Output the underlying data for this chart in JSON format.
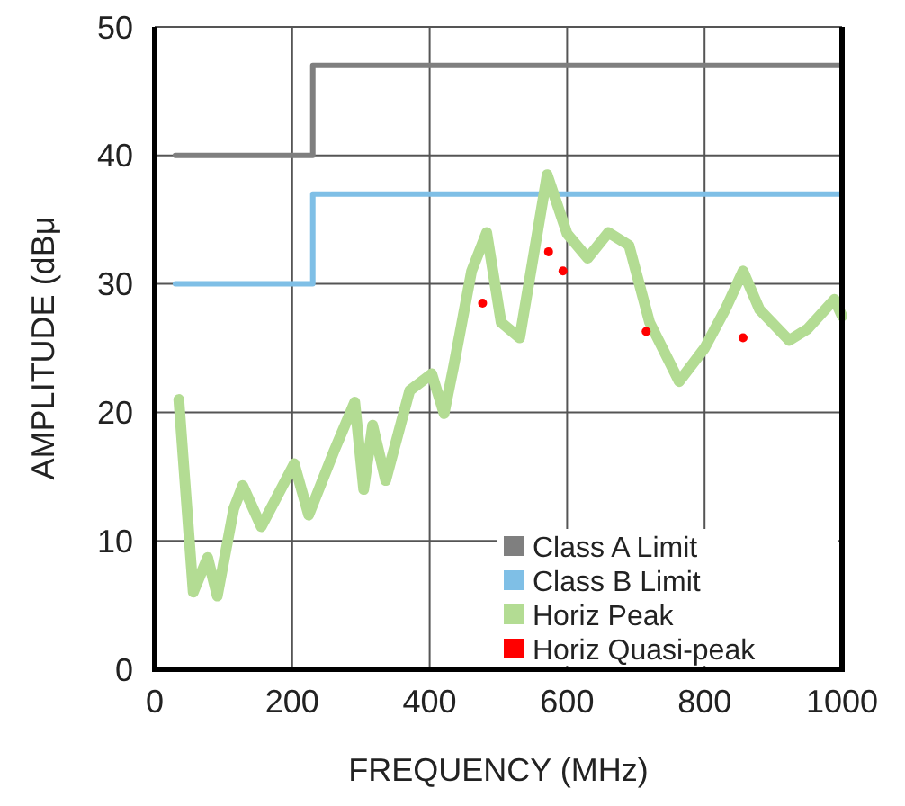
{
  "chart_data": {
    "type": "line",
    "xlabel": "FREQUENCY (MHz)",
    "ylabel": "AMPLITUDE (dBμ",
    "xlim": [
      0,
      1000
    ],
    "ylim": [
      0,
      50
    ],
    "xticks": [
      0,
      200,
      400,
      600,
      800,
      1000
    ],
    "yticks": [
      0,
      10,
      20,
      30,
      40,
      50
    ],
    "grid": true,
    "legend": "bottom right",
    "series": [
      {
        "name": "Class A Limit",
        "color": "#7f7f7f",
        "x": [
          30,
          230,
          230,
          1000
        ],
        "values": [
          40,
          40,
          47,
          47
        ]
      },
      {
        "name": "Class B Limit",
        "color": "#7fbfe6",
        "x": [
          30,
          230,
          230,
          1000
        ],
        "values": [
          30,
          30,
          37,
          37
        ]
      },
      {
        "name": "Horiz Peak",
        "color": "#b3dc93",
        "x": [
          35,
          56,
          77,
          91,
          115,
          128,
          155,
          203,
          224,
          261,
          291,
          304,
          317,
          336,
          371,
          403,
          421,
          435,
          461,
          483,
          504,
          531,
          571,
          600,
          630,
          660,
          690,
          720,
          763,
          800,
          830,
          856,
          880,
          923,
          950,
          989,
          1000
        ],
        "values": [
          21,
          6,
          8.7,
          5.7,
          12.5,
          14.3,
          11.1,
          16,
          12,
          17,
          20.8,
          14,
          19,
          14.7,
          21.7,
          23,
          19.9,
          23.6,
          31,
          34,
          27,
          25.8,
          38.5,
          33.9,
          32,
          34,
          33,
          27,
          22.4,
          25,
          28,
          31,
          28,
          25.6,
          26.5,
          28.8,
          27.5
        ]
      },
      {
        "name": "Horiz Quasi-peak",
        "type": "scatter",
        "marker": "circle",
        "color": "#ff0000",
        "x": [
          477,
          573,
          594,
          715,
          856
        ],
        "values": [
          28.5,
          32.5,
          31,
          26.3,
          25.8
        ]
      }
    ]
  }
}
